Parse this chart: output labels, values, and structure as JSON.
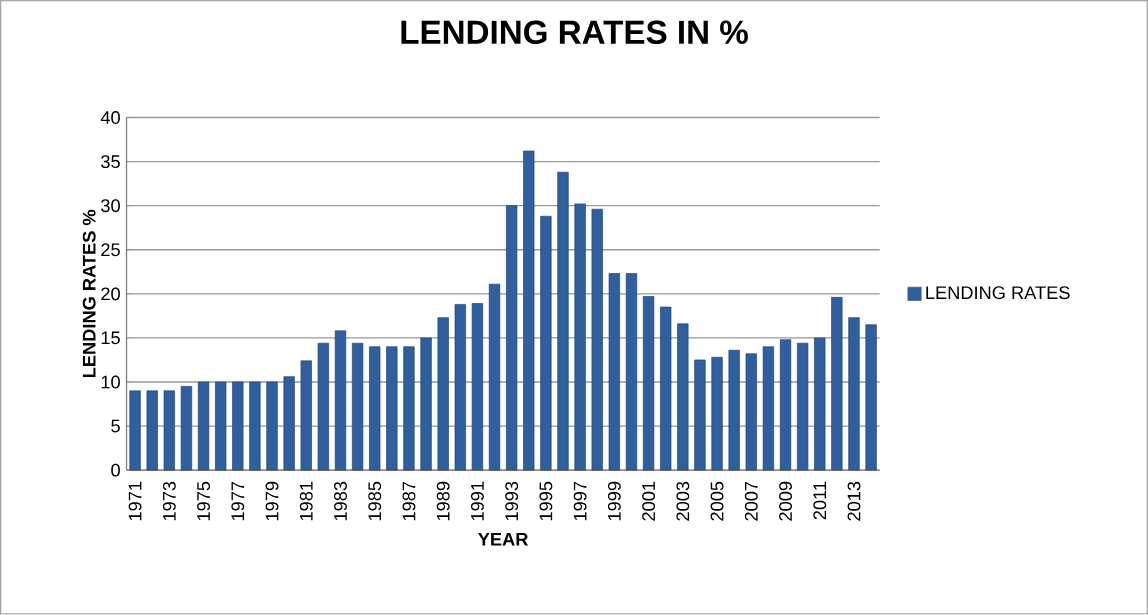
{
  "chart_data": {
    "type": "bar",
    "title": "LENDING RATES IN %",
    "xlabel": "YEAR",
    "ylabel": "LENDING RATES %",
    "categories": [
      "1971",
      null,
      "1973",
      null,
      "1975",
      null,
      "1977",
      null,
      "1979",
      null,
      "1981",
      null,
      "1983",
      null,
      "1985",
      null,
      "1987",
      null,
      "1989",
      null,
      "1991",
      null,
      "1993",
      null,
      "1995",
      null,
      "1997",
      null,
      "1999",
      null,
      "2001",
      null,
      "2003",
      null,
      "2005",
      null,
      "2007",
      null,
      "2009",
      null,
      "2011",
      null,
      "2013",
      null
    ],
    "series": [
      {
        "name": "LENDING RATES",
        "color": "#2f5f9e",
        "values": [
          9,
          9,
          9,
          9.5,
          10,
          10,
          10,
          10,
          10,
          10.6,
          12.4,
          14.4,
          15.8,
          14.4,
          14,
          14,
          14,
          15,
          17.3,
          18.8,
          18.9,
          21.1,
          30,
          36.2,
          28.8,
          33.8,
          30.2,
          29.6,
          22.3,
          22.3,
          19.7,
          18.5,
          16.6,
          12.5,
          12.8,
          13.6,
          13.2,
          14,
          14.8,
          14.4,
          15,
          19.6,
          17.3,
          16.5
        ]
      }
    ],
    "ylim": [
      0,
      40
    ],
    "yticks": [
      0,
      5,
      10,
      15,
      20,
      25,
      30,
      35,
      40
    ],
    "grid": "y",
    "legend": "right"
  }
}
